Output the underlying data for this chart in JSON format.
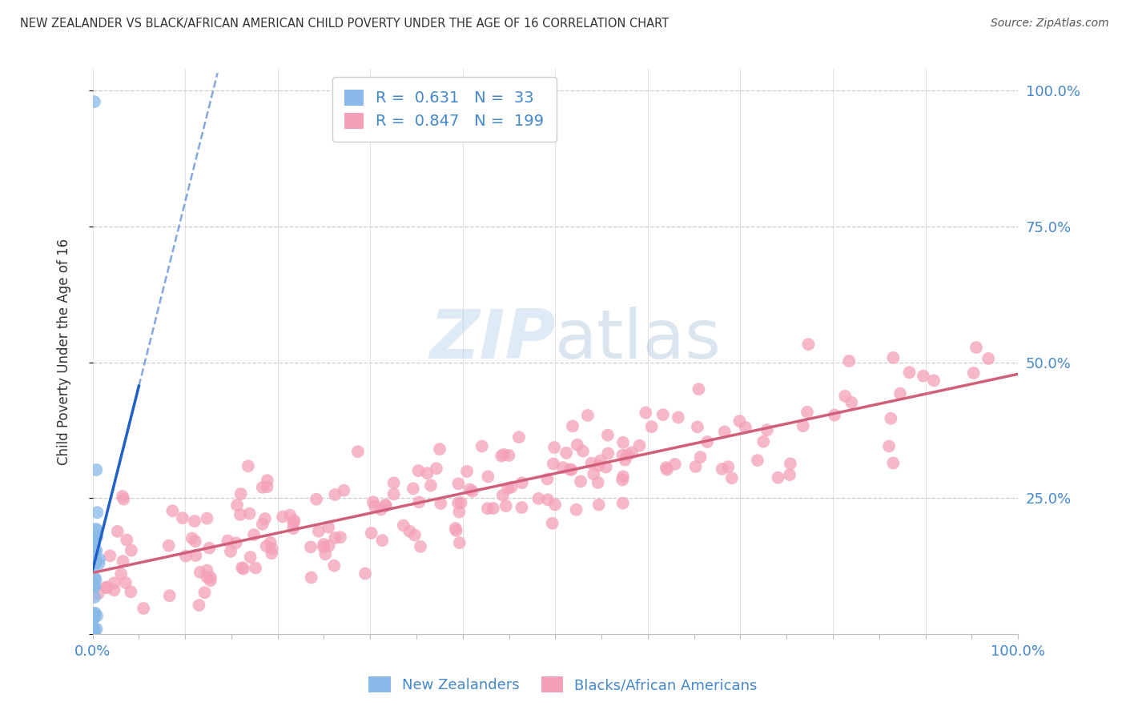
{
  "title": "NEW ZEALANDER VS BLACK/AFRICAN AMERICAN CHILD POVERTY UNDER THE AGE OF 16 CORRELATION CHART",
  "source": "Source: ZipAtlas.com",
  "ylabel": "Child Poverty Under the Age of 16",
  "watermark_zip": "ZIP",
  "watermark_atlas": "atlas",
  "nz_R": 0.631,
  "nz_N": 33,
  "baa_R": 0.847,
  "baa_N": 199,
  "nz_color": "#89b9e8",
  "baa_color": "#f4a0b8",
  "nz_line_color": "#2060c8",
  "baa_line_color": "#d0607a",
  "background_color": "#ffffff",
  "grid_color": "#cccccc",
  "tick_label_color": "#4488cc",
  "title_color": "#333333",
  "source_color": "#555555",
  "legend_label_nz": "New Zealanders",
  "legend_label_baa": "Blacks/African Americans"
}
